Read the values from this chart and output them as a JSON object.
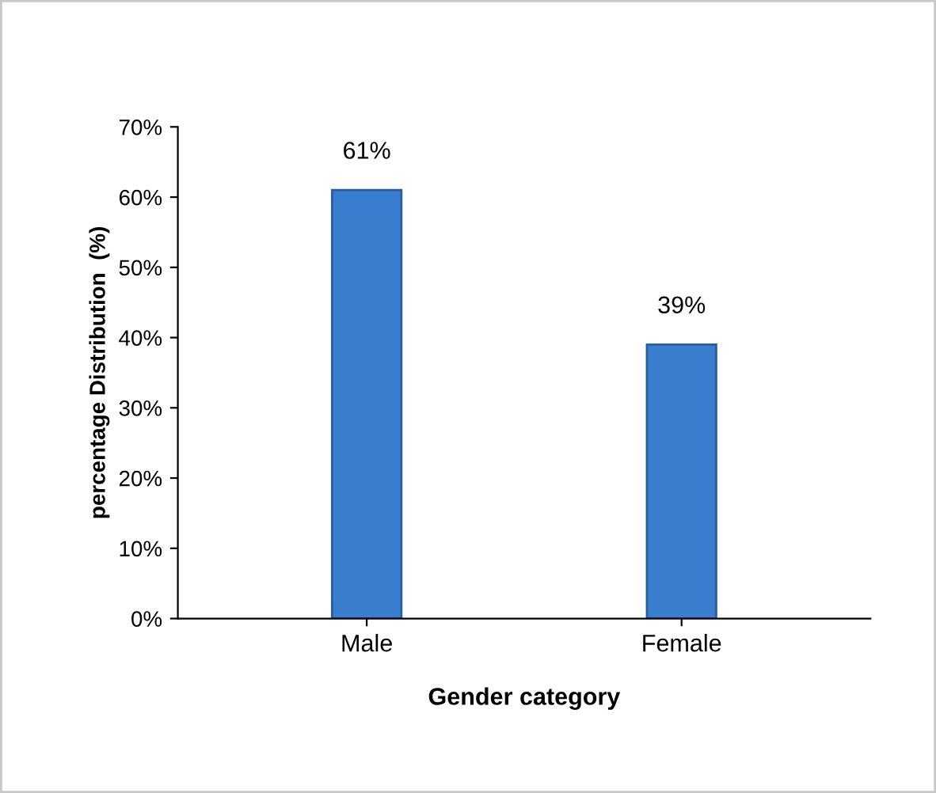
{
  "chart_data": {
    "type": "bar",
    "categories": [
      "Male",
      "Female"
    ],
    "values": [
      61,
      39
    ],
    "color": "#3a7fcf",
    "value_labels": [
      "61%",
      "39%"
    ],
    "xlabel": "Gender category",
    "ylabel": "percentage Distribution  (%)",
    "ylim": [
      0,
      70
    ],
    "yticks": [
      {
        "value": 0,
        "label": "0%"
      },
      {
        "value": 10,
        "label": "10%"
      },
      {
        "value": 20,
        "label": "20%"
      },
      {
        "value": 30,
        "label": "30%"
      },
      {
        "value": 40,
        "label": "40%"
      },
      {
        "value": 50,
        "label": "50%"
      },
      {
        "value": 60,
        "label": "60%"
      },
      {
        "value": 70,
        "label": "70%"
      }
    ],
    "grid": false,
    "legend": false
  }
}
